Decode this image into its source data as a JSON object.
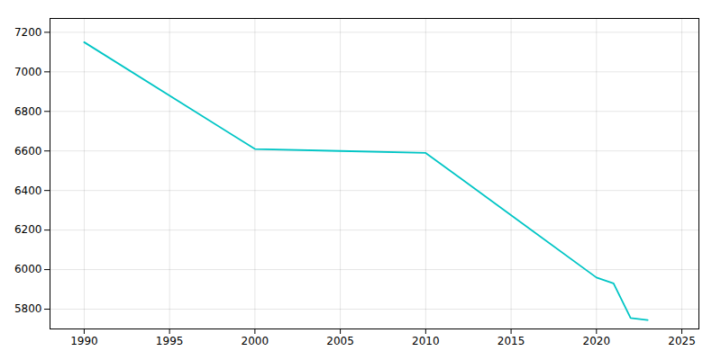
{
  "chart_data": {
    "type": "line",
    "x": [
      1990,
      2000,
      2005,
      2010,
      2020,
      2021,
      2022,
      2023
    ],
    "values": [
      7150,
      6610,
      6600,
      6590,
      5960,
      5930,
      5755,
      5745
    ],
    "color": "#00c5c5",
    "xlim": [
      1988,
      2026
    ],
    "ylim": [
      5700,
      7270
    ],
    "xticks": [
      1990,
      1995,
      2000,
      2005,
      2010,
      2015,
      2020,
      2025
    ],
    "yticks": [
      5800,
      6000,
      6200,
      6400,
      6600,
      6800,
      7000,
      7200
    ],
    "grid": true
  }
}
